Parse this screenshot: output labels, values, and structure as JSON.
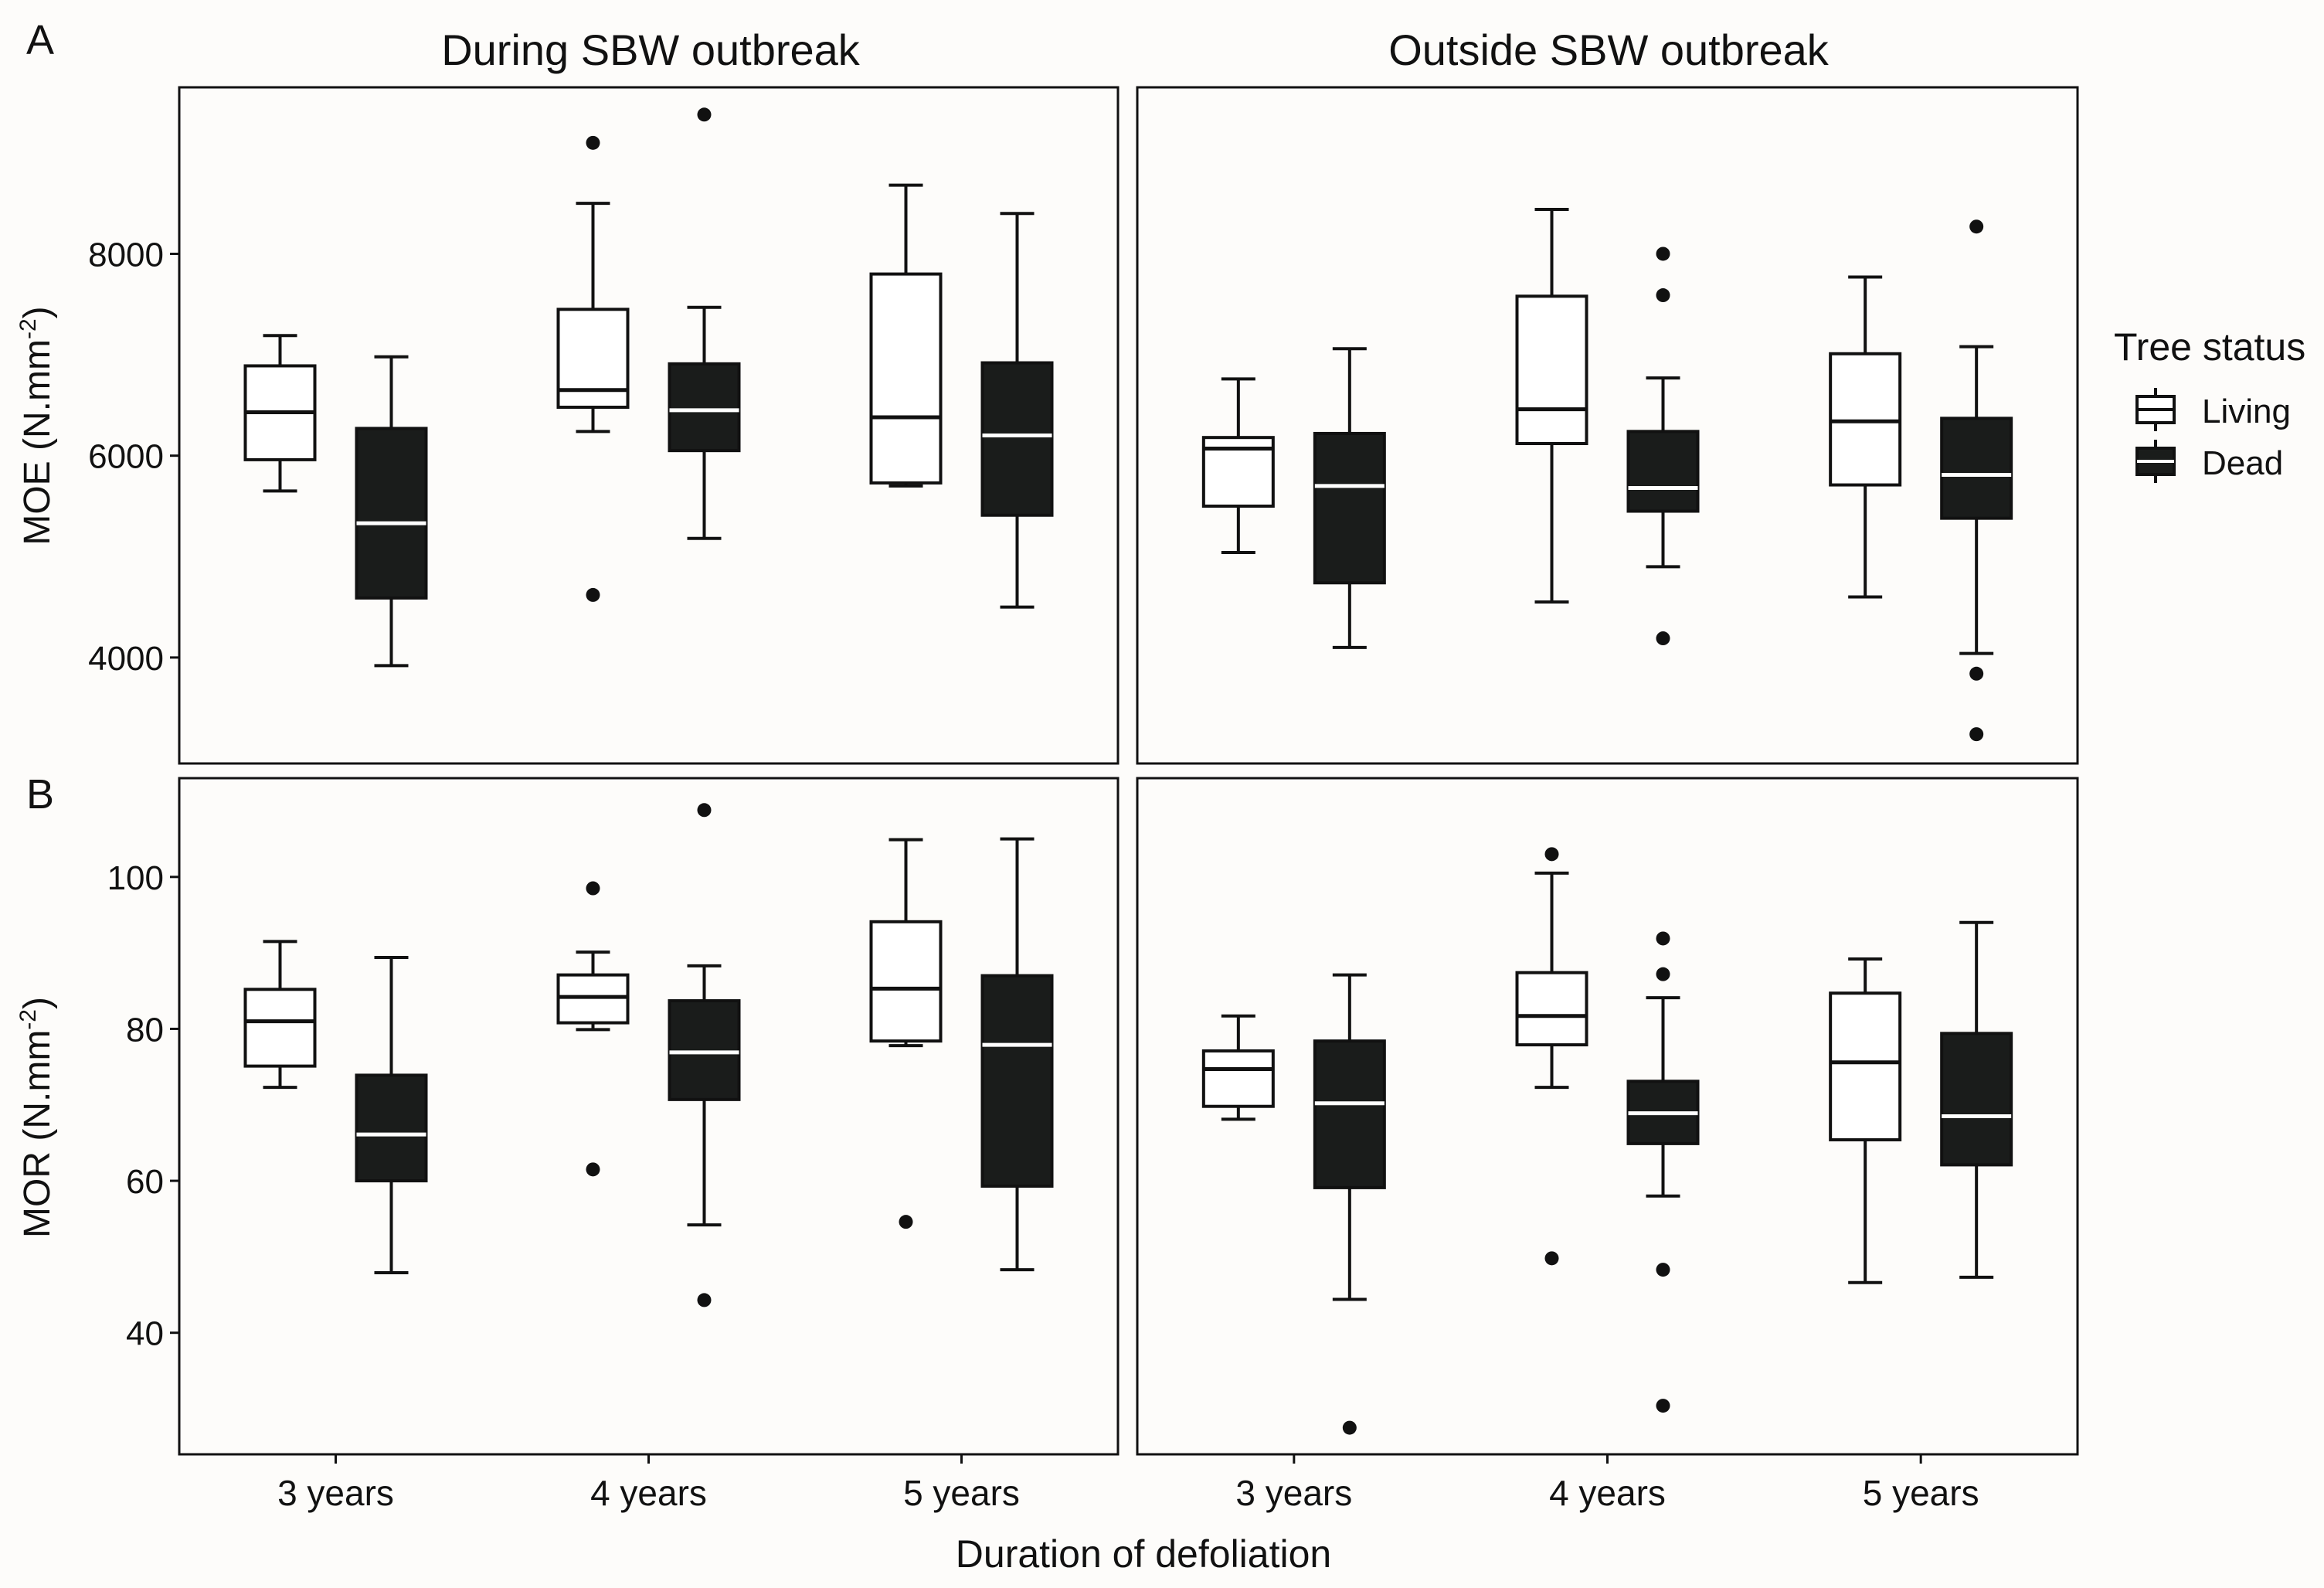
{
  "figure": {
    "panel_labels": [
      "A",
      "B"
    ],
    "column_titles": [
      "During SBW outbreak",
      "Outside SBW outbreak"
    ],
    "x_axis_title": "Duration of defoliation",
    "legend": {
      "title": "Tree status",
      "items": [
        {
          "label": "Living",
          "fill": "#ffffff"
        },
        {
          "label": "Dead",
          "fill": "#1a1c1b"
        }
      ]
    }
  },
  "chart_data": [
    {
      "type": "box",
      "row": "A",
      "facet": "During SBW outbreak",
      "ylabel": "MOE (N.mm",
      "ylabel_sup": "-2",
      "ylabel_close": ")",
      "ylim": [
        2950,
        9650
      ],
      "yticks": [
        4000,
        6000,
        8000
      ],
      "categories": [
        "3 years",
        "4 years",
        "5 years"
      ],
      "series": [
        {
          "name": "Living",
          "boxes": [
            {
              "low": 5650,
              "q1": 5960,
              "median": 6430,
              "q3": 6890,
              "high": 7190,
              "outliers": []
            },
            {
              "low": 6240,
              "q1": 6480,
              "median": 6650,
              "q3": 7450,
              "high": 8500,
              "outliers": [
                9100,
                4620
              ]
            },
            {
              "low": 5700,
              "q1": 5730,
              "median": 6380,
              "q3": 7800,
              "high": 8680,
              "outliers": []
            }
          ]
        },
        {
          "name": "Dead",
          "boxes": [
            {
              "low": 3920,
              "q1": 4590,
              "median": 5330,
              "q3": 6270,
              "high": 6980,
              "outliers": []
            },
            {
              "low": 5180,
              "q1": 6050,
              "median": 6450,
              "q3": 6910,
              "high": 7470,
              "outliers": [
                9380
              ]
            },
            {
              "low": 4500,
              "q1": 5410,
              "median": 6200,
              "q3": 6920,
              "high": 8400,
              "outliers": []
            }
          ]
        }
      ]
    },
    {
      "type": "box",
      "row": "A",
      "facet": "Outside SBW outbreak",
      "ylabel": "MOE (N.mm",
      "ylabel_sup": "-2",
      "ylabel_close": ")",
      "ylim": [
        2950,
        9650
      ],
      "yticks": [
        4000,
        6000,
        8000
      ],
      "categories": [
        "3 years",
        "4 years",
        "5 years"
      ],
      "series": [
        {
          "name": "Living",
          "boxes": [
            {
              "low": 5040,
              "q1": 5500,
              "median": 6070,
              "q3": 6180,
              "high": 6760,
              "outliers": []
            },
            {
              "low": 4550,
              "q1": 6120,
              "median": 6460,
              "q3": 7580,
              "high": 8440,
              "outliers": []
            },
            {
              "low": 4600,
              "q1": 5710,
              "median": 6340,
              "q3": 7010,
              "high": 7770,
              "outliers": []
            }
          ]
        },
        {
          "name": "Dead",
          "boxes": [
            {
              "low": 4100,
              "q1": 4740,
              "median": 5700,
              "q3": 6220,
              "high": 7060,
              "outliers": []
            },
            {
              "low": 4900,
              "q1": 5450,
              "median": 5680,
              "q3": 6240,
              "high": 6770,
              "outliers": [
                8000,
                7590,
                4190
              ]
            },
            {
              "low": 4040,
              "q1": 5380,
              "median": 5810,
              "q3": 6370,
              "high": 7080,
              "outliers": [
                8270,
                3840,
                3240
              ]
            }
          ]
        }
      ]
    },
    {
      "type": "box",
      "row": "B",
      "facet": "During SBW outbreak",
      "ylabel": "MOR (N.mm",
      "ylabel_sup": "-2",
      "ylabel_close": ")",
      "ylim": [
        24,
        113
      ],
      "yticks": [
        40,
        60,
        80,
        100
      ],
      "categories": [
        "3 years",
        "4 years",
        "5 years"
      ],
      "series": [
        {
          "name": "Living",
          "boxes": [
            {
              "low": 72.3,
              "q1": 75.1,
              "median": 81.0,
              "q3": 85.2,
              "high": 91.5,
              "outliers": []
            },
            {
              "low": 79.9,
              "q1": 80.8,
              "median": 84.2,
              "q3": 87.1,
              "high": 90.1,
              "outliers": [
                98.5,
                61.5
              ]
            },
            {
              "low": 77.8,
              "q1": 78.4,
              "median": 85.3,
              "q3": 94.1,
              "high": 104.9,
              "outliers": [
                54.6
              ]
            }
          ]
        },
        {
          "name": "Dead",
          "boxes": [
            {
              "low": 47.9,
              "q1": 60.0,
              "median": 66.1,
              "q3": 73.9,
              "high": 89.4,
              "outliers": []
            },
            {
              "low": 54.2,
              "q1": 70.7,
              "median": 76.9,
              "q3": 83.7,
              "high": 88.3,
              "outliers": [
                108.8,
                44.3
              ]
            },
            {
              "low": 48.3,
              "q1": 59.3,
              "median": 77.9,
              "q3": 87.0,
              "high": 105.0,
              "outliers": []
            }
          ]
        }
      ]
    },
    {
      "type": "box",
      "row": "B",
      "facet": "Outside SBW outbreak",
      "ylabel": "MOR (N.mm",
      "ylabel_sup": "-2",
      "ylabel_close": ")",
      "ylim": [
        24,
        113
      ],
      "yticks": [
        40,
        60,
        80,
        100
      ],
      "categories": [
        "3 years",
        "4 years",
        "5 years"
      ],
      "series": [
        {
          "name": "Living",
          "boxes": [
            {
              "low": 68.1,
              "q1": 69.8,
              "median": 74.7,
              "q3": 77.1,
              "high": 81.7,
              "outliers": []
            },
            {
              "low": 72.3,
              "q1": 77.9,
              "median": 81.7,
              "q3": 87.4,
              "high": 100.5,
              "outliers": [
                103.0,
                49.8
              ]
            },
            {
              "low": 46.6,
              "q1": 65.4,
              "median": 75.6,
              "q3": 84.7,
              "high": 89.2,
              "outliers": []
            }
          ]
        },
        {
          "name": "Dead",
          "boxes": [
            {
              "low": 44.4,
              "q1": 59.1,
              "median": 70.2,
              "q3": 78.4,
              "high": 87.1,
              "outliers": [
                27.5
              ]
            },
            {
              "low": 58.0,
              "q1": 64.9,
              "median": 68.9,
              "q3": 73.1,
              "high": 84.1,
              "outliers": [
                91.9,
                87.2,
                48.3,
                30.4
              ]
            },
            {
              "low": 47.3,
              "q1": 62.1,
              "median": 68.5,
              "q3": 79.4,
              "high": 94.0,
              "outliers": []
            }
          ]
        }
      ]
    }
  ]
}
